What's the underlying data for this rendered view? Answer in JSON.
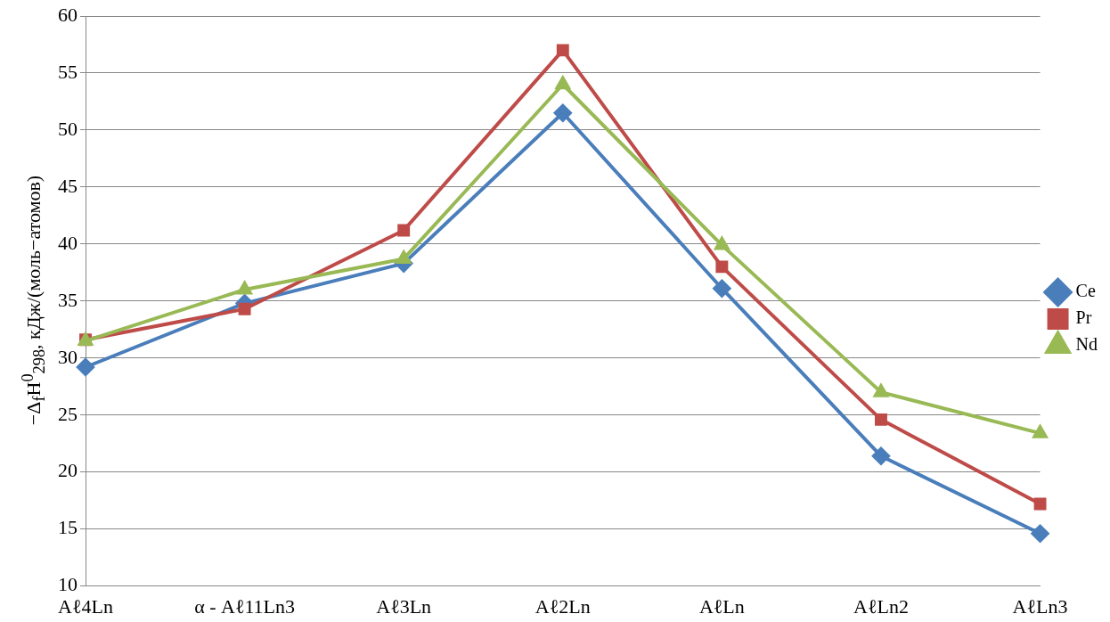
{
  "chart_data": {
    "type": "line",
    "ylabel": "−Δ$_{f}$H$^{0}$$_{298}$, кДж/(моль−атомов)",
    "categories": [
      "Aℓ4Ln",
      "α - Aℓ11Ln3",
      "Aℓ3Ln",
      "Aℓ2Ln",
      "AℓLn",
      "AℓLn2",
      "AℓLn3"
    ],
    "series": [
      {
        "name": "Ce",
        "color": "#4a7ebb",
        "marker": "diamond",
        "values": [
          29.2,
          34.8,
          38.3,
          51.5,
          36.1,
          21.4,
          14.6
        ]
      },
      {
        "name": "Pr",
        "color": "#be4b48",
        "marker": "square",
        "values": [
          31.6,
          34.3,
          41.2,
          57.0,
          38.0,
          24.6,
          17.2
        ]
      },
      {
        "name": "Nd",
        "color": "#98b954",
        "marker": "triangle",
        "values": [
          31.5,
          36.0,
          38.7,
          54.0,
          39.9,
          27.0,
          23.4
        ]
      }
    ],
    "ylim": [
      10,
      60
    ],
    "yticks": [
      10,
      15,
      20,
      25,
      30,
      35,
      40,
      45,
      50,
      55,
      60
    ],
    "grid": "y",
    "legend": "right",
    "line_style": "solid"
  }
}
